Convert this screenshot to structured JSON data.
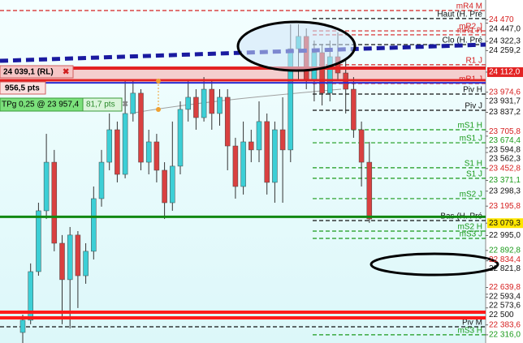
{
  "chart_data": {
    "type": "candlestick",
    "ylim": [
      22260,
      24605
    ],
    "up_color": "#3ccfd6",
    "down_color": "#d94040",
    "open": [
      22332,
      22416,
      22748,
      23164,
      23496,
      22942,
      22693,
      22998,
      22720,
      22887,
      23247,
      23496,
      23718,
      23413,
      23829,
      23968,
      23496,
      23635,
      23441,
      23219,
      23469,
      23857,
      23940,
      23801,
      23995,
      23829,
      23940,
      23607,
      23330,
      23635,
      23580,
      23774,
      23358,
      23718,
      23580,
      24272,
      24356,
      24051,
      24245,
      23968,
      24217,
      24106,
      23995,
      23718,
      23496
    ],
    "high": [
      22454,
      22804,
      23219,
      23690,
      23580,
      22998,
      23053,
      23025,
      22942,
      23330,
      23580,
      23829,
      23774,
      24051,
      24051,
      23995,
      23718,
      23690,
      23496,
      23774,
      23912,
      24051,
      23995,
      24078,
      24051,
      23995,
      23995,
      23663,
      23774,
      23718,
      23912,
      23829,
      23774,
      23940,
      24439,
      24439,
      24411,
      24328,
      24300,
      24328,
      24383,
      24189,
      24078,
      23774,
      23635
    ],
    "low": [
      22260,
      22388,
      22720,
      23108,
      22887,
      22388,
      22360,
      22499,
      22665,
      22831,
      23192,
      23441,
      23358,
      23386,
      23774,
      23441,
      23413,
      23358,
      23108,
      23164,
      23413,
      23774,
      23718,
      23774,
      23718,
      23746,
      23441,
      23247,
      23275,
      23496,
      23496,
      23275,
      23219,
      23219,
      23496,
      24051,
      23995,
      23912,
      23884,
      23912,
      24051,
      23829,
      23663,
      23330,
      23081
    ],
    "close": [
      22416,
      22748,
      23164,
      23496,
      22942,
      22693,
      22998,
      22720,
      22887,
      23247,
      23496,
      23718,
      23413,
      23829,
      23968,
      23496,
      23635,
      23441,
      23219,
      23469,
      23857,
      23940,
      23801,
      23995,
      23829,
      23940,
      23607,
      23330,
      23635,
      23580,
      23774,
      23358,
      23718,
      23580,
      24272,
      24356,
      24051,
      24245,
      23968,
      24217,
      24106,
      23995,
      23718,
      23496,
      23108
    ],
    "zone": {
      "from": 24056,
      "to": 24139,
      "color": "#f6b9b9"
    },
    "horizontal_lines": [
      {
        "value": 24139,
        "color": "#e32222",
        "width": 4
      },
      {
        "value": 24056,
        "color": "#e32222",
        "width": 3
      },
      {
        "value": 24039.1,
        "color": "#2a2ad0",
        "width": 2
      },
      {
        "value": 23123,
        "color": "#118811",
        "width": 3
      },
      {
        "value": 22471,
        "color": "#ff1a1a",
        "width": 4
      },
      {
        "value": 22432,
        "color": "#ff1a1a",
        "width": 4
      }
    ],
    "trendline": {
      "start": 24189,
      "end": 24300,
      "color": "#1a1aa0"
    },
    "levels": [
      {
        "name": "mR4 M",
        "value": 24533,
        "color": "#d62020",
        "span": "full"
      },
      {
        "name": "Haut (H. Pré",
        "value": 24478,
        "color": "#111111",
        "span": "right"
      },
      {
        "name": "mR2 J",
        "value": 24394,
        "color": "#d62020",
        "span": "right"
      },
      {
        "name": "mR1 H",
        "value": 24367,
        "color": "#d62020",
        "span": "right"
      },
      {
        "name": "Clo (H. Pré",
        "value": 24300,
        "color": "#111111",
        "span": "right"
      },
      {
        "name": "R1 J",
        "value": 24162,
        "color": "#d62020",
        "span": "right"
      },
      {
        "name": "mR1 J",
        "value": 24034,
        "color": "#d62020",
        "span": "right"
      },
      {
        "name": "Piv H",
        "value": 23962,
        "color": "#111111",
        "span": "right"
      },
      {
        "name": "Piv J",
        "value": 23851,
        "color": "#111111",
        "span": "right"
      },
      {
        "name": "mS1 H",
        "value": 23718,
        "color": "#1a9a1a",
        "span": "right"
      },
      {
        "name": "mS1 J",
        "value": 23629,
        "color": "#1a9a1a",
        "span": "right"
      },
      {
        "name": "S1 H",
        "value": 23458,
        "color": "#1a9a1a",
        "span": "right"
      },
      {
        "name": "S1 J",
        "value": 23386,
        "color": "#1a9a1a",
        "span": "right"
      },
      {
        "name": "mS2 J",
        "value": 23247,
        "color": "#1a9a1a",
        "span": "right"
      },
      {
        "name": "Bas (H. Pré",
        "value": 23097,
        "color": "#111111",
        "span": "right"
      },
      {
        "name": "mS2 H",
        "value": 23025,
        "color": "#1a9a1a",
        "span": "right"
      },
      {
        "name": "mS3 J",
        "value": 22975,
        "color": "#1a9a1a",
        "span": "right"
      },
      {
        "name": "Piv M",
        "value": 22371,
        "color": "#111111",
        "span": "full"
      },
      {
        "name": "mS3 H",
        "value": 22316,
        "color": "#1a9a1a",
        "span": "right"
      }
    ],
    "yticks": [
      {
        "value": 24470,
        "label": "24 470",
        "color": "#d62020"
      },
      {
        "value": 24447,
        "label": "24 447,0",
        "color": "#111111"
      },
      {
        "value": 24322.3,
        "label": "24 322,3",
        "color": "#111111"
      },
      {
        "value": 24259.2,
        "label": "24 259,2",
        "color": "#111111"
      },
      {
        "value": 24112,
        "label": "24 112,0",
        "color": "#ffffff",
        "bg": "#e32222"
      },
      {
        "value": 23974.6,
        "label": "23 974,6",
        "color": "#d62020"
      },
      {
        "value": 23931.7,
        "label": "23 931,7",
        "color": "#111111"
      },
      {
        "value": 23837.2,
        "label": "23 837,2",
        "color": "#111111"
      },
      {
        "value": 23705.8,
        "label": "23 705,8",
        "color": "#d62020"
      },
      {
        "value": 23674.4,
        "label": "23 674,4",
        "color": "#1a9a1a"
      },
      {
        "value": 23594.8,
        "label": "23 594,8",
        "color": "#111111"
      },
      {
        "value": 23562.3,
        "label": "23 562,3",
        "color": "#111111"
      },
      {
        "value": 23452.8,
        "label": "23 452,8",
        "color": "#d62020"
      },
      {
        "value": 23371.1,
        "label": "23 371,1",
        "color": "#1a9a1a"
      },
      {
        "value": 23298.3,
        "label": "23 298,3",
        "color": "#111111"
      },
      {
        "value": 23195.8,
        "label": "23 195,8",
        "color": "#d62020"
      },
      {
        "value": 23079.3,
        "label": "23 079,3",
        "color": "#111111",
        "bg": "#ffe600"
      },
      {
        "value": 22995,
        "label": "22 995,0",
        "color": "#111111"
      },
      {
        "value": 22892.8,
        "label": "22 892,8",
        "color": "#1a9a1a"
      },
      {
        "value": 22834.4,
        "label": "22 834,4",
        "color": "#d62020"
      },
      {
        "value": 22821.8,
        "label": "22 821,8",
        "color": "#111111"
      },
      {
        "value": 22639.8,
        "label": "22 639,8",
        "color": "#d62020"
      },
      {
        "value": 22593.4,
        "label": "22 593,4",
        "color": "#111111"
      },
      {
        "value": 22573.6,
        "label": "22 573,6",
        "color": "#111111"
      },
      {
        "value": 22500,
        "label": "22 500",
        "color": "#111111"
      },
      {
        "value": 22383.6,
        "label": "22 383,6",
        "color": "#d62020"
      },
      {
        "value": 22316,
        "label": "22 316,0",
        "color": "#1a9a1a"
      }
    ],
    "annotations": {
      "rl": "24 039,1 (RL)",
      "pts": "956,5 pts",
      "tp": "TPg 0,25 @ 23 957,4",
      "tp_pts": "81,7 pts"
    }
  }
}
